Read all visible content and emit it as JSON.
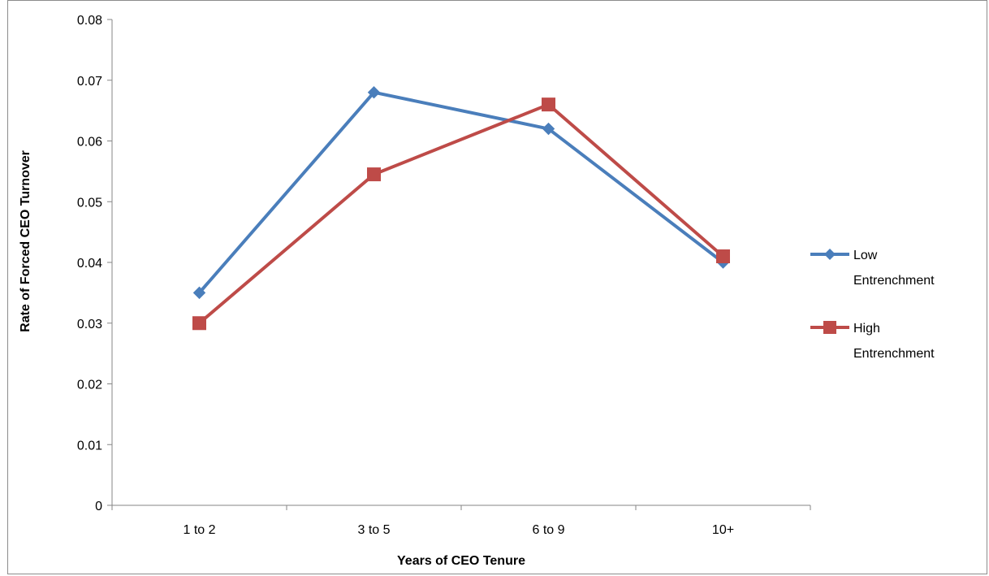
{
  "chart_data": {
    "type": "line",
    "title": "",
    "xlabel": "Years of CEO Tenure",
    "ylabel": "Rate of Forced CEO Turnover",
    "categories": [
      "1 to 2",
      "3 to 5",
      "6 to 9",
      "10+"
    ],
    "ylim": [
      0,
      0.08
    ],
    "yticks": [
      0,
      0.01,
      0.02,
      0.03,
      0.04,
      0.05,
      0.06,
      0.07,
      0.08
    ],
    "ytick_labels": [
      "0",
      "0.01",
      "0.02",
      "0.03",
      "0.04",
      "0.05",
      "0.06",
      "0.07",
      "0.08"
    ],
    "grid": false,
    "legend_position": "right",
    "series": [
      {
        "name": "Low Entrenchment",
        "name_lines": [
          "Low",
          "Entrenchment"
        ],
        "values": [
          0.035,
          0.068,
          0.062,
          0.04
        ],
        "color": "#4a7ebb",
        "marker": "diamond"
      },
      {
        "name": "High Entrenchment",
        "name_lines": [
          "High",
          "Entrenchment"
        ],
        "values": [
          0.03,
          0.0545,
          0.066,
          0.041
        ],
        "color": "#be4b48",
        "marker": "square"
      }
    ]
  }
}
